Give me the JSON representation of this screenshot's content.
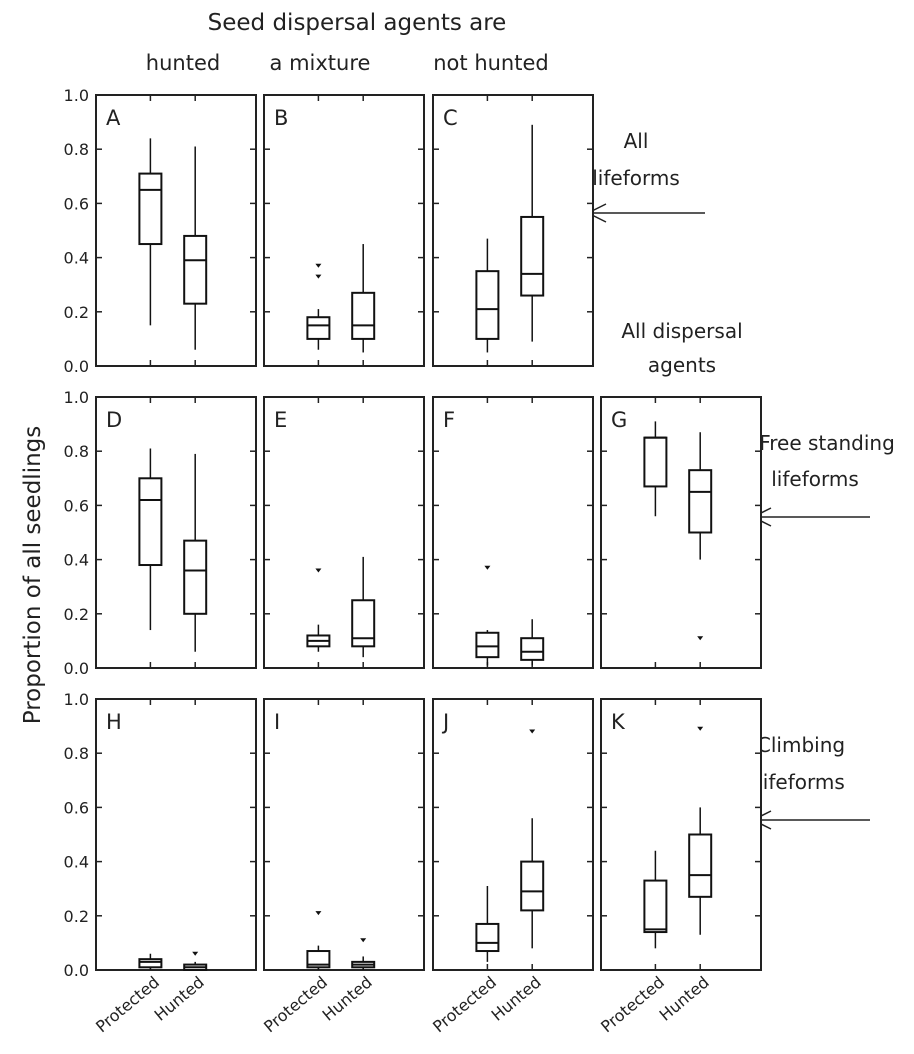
{
  "figure": {
    "title": "Seed dispersal agents are",
    "column_headers": [
      "hunted",
      "a mixture",
      "not hunted"
    ],
    "extra_column_header": [
      "All dispersal",
      "agents"
    ],
    "ylabel": "Proportion of all seedlings",
    "row_labels": [
      [
        "All",
        "lifeforms"
      ],
      [
        "Free standing",
        "lifeforms"
      ],
      [
        "Climbing",
        "lifeforms"
      ]
    ],
    "categories": [
      "Protected",
      "Hunted"
    ],
    "yticks": [
      "1.0",
      "0.8",
      "0.6",
      "0.4",
      "0.2",
      "0.0"
    ]
  },
  "chart_data": [
    {
      "type": "box",
      "panel": "A",
      "categories": [
        "Protected",
        "Hunted"
      ],
      "ylim": [
        0,
        1.0
      ],
      "boxes": [
        {
          "whislo": 0.15,
          "q1": 0.45,
          "med": 0.65,
          "q3": 0.71,
          "whishi": 0.84,
          "fliers": []
        },
        {
          "whislo": 0.06,
          "q1": 0.23,
          "med": 0.39,
          "q3": 0.48,
          "whishi": 0.81,
          "fliers": []
        }
      ]
    },
    {
      "type": "box",
      "panel": "B",
      "categories": [
        "Protected",
        "Hunted"
      ],
      "ylim": [
        0,
        1.0
      ],
      "boxes": [
        {
          "whislo": 0.06,
          "q1": 0.1,
          "med": 0.15,
          "q3": 0.18,
          "whishi": 0.21,
          "fliers": [
            0.33,
            0.37
          ]
        },
        {
          "whislo": 0.05,
          "q1": 0.1,
          "med": 0.15,
          "q3": 0.27,
          "whishi": 0.45,
          "fliers": []
        }
      ]
    },
    {
      "type": "box",
      "panel": "C",
      "categories": [
        "Protected",
        "Hunted"
      ],
      "ylim": [
        0,
        1.0
      ],
      "boxes": [
        {
          "whislo": 0.05,
          "q1": 0.1,
          "med": 0.21,
          "q3": 0.35,
          "whishi": 0.47,
          "fliers": []
        },
        {
          "whislo": 0.09,
          "q1": 0.26,
          "med": 0.34,
          "q3": 0.55,
          "whishi": 0.89,
          "fliers": []
        }
      ]
    },
    {
      "type": "box",
      "panel": "D",
      "categories": [
        "Protected",
        "Hunted"
      ],
      "ylim": [
        0,
        1.0
      ],
      "boxes": [
        {
          "whislo": 0.14,
          "q1": 0.38,
          "med": 0.62,
          "q3": 0.7,
          "whishi": 0.81,
          "fliers": []
        },
        {
          "whislo": 0.06,
          "q1": 0.2,
          "med": 0.36,
          "q3": 0.47,
          "whishi": 0.79,
          "fliers": []
        }
      ]
    },
    {
      "type": "box",
      "panel": "E",
      "categories": [
        "Protected",
        "Hunted"
      ],
      "ylim": [
        0,
        1.0
      ],
      "boxes": [
        {
          "whislo": 0.06,
          "q1": 0.08,
          "med": 0.1,
          "q3": 0.12,
          "whishi": 0.16,
          "fliers": [
            0.36
          ]
        },
        {
          "whislo": 0.04,
          "q1": 0.08,
          "med": 0.11,
          "q3": 0.25,
          "whishi": 0.41,
          "fliers": []
        }
      ]
    },
    {
      "type": "box",
      "panel": "F",
      "categories": [
        "Protected",
        "Hunted"
      ],
      "ylim": [
        0,
        1.0
      ],
      "boxes": [
        {
          "whislo": 0.01,
          "q1": 0.04,
          "med": 0.08,
          "q3": 0.13,
          "whishi": 0.14,
          "fliers": [
            0.37
          ]
        },
        {
          "whislo": 0.01,
          "q1": 0.03,
          "med": 0.06,
          "q3": 0.11,
          "whishi": 0.18,
          "fliers": []
        }
      ]
    },
    {
      "type": "box",
      "panel": "G",
      "categories": [
        "Protected",
        "Hunted"
      ],
      "ylim": [
        0,
        1.0
      ],
      "boxes": [
        {
          "whislo": 0.56,
          "q1": 0.67,
          "med": 0.85,
          "q3": 0.85,
          "whishi": 0.91,
          "fliers": []
        },
        {
          "whislo": 0.4,
          "q1": 0.5,
          "med": 0.65,
          "q3": 0.73,
          "whishi": 0.87,
          "fliers": [
            0.11
          ]
        }
      ]
    },
    {
      "type": "box",
      "panel": "H",
      "categories": [
        "Protected",
        "Hunted"
      ],
      "ylim": [
        0,
        1.0
      ],
      "boxes": [
        {
          "whislo": 0.0,
          "q1": 0.01,
          "med": 0.03,
          "q3": 0.04,
          "whishi": 0.06,
          "fliers": []
        },
        {
          "whislo": 0.0,
          "q1": 0.0,
          "med": 0.01,
          "q3": 0.02,
          "whishi": 0.03,
          "fliers": [
            0.06
          ]
        }
      ]
    },
    {
      "type": "box",
      "panel": "I",
      "categories": [
        "Protected",
        "Hunted"
      ],
      "ylim": [
        0,
        1.0
      ],
      "boxes": [
        {
          "whislo": 0.0,
          "q1": 0.01,
          "med": 0.02,
          "q3": 0.07,
          "whishi": 0.09,
          "fliers": [
            0.21
          ]
        },
        {
          "whislo": 0.0,
          "q1": 0.01,
          "med": 0.02,
          "q3": 0.03,
          "whishi": 0.05,
          "fliers": [
            0.11
          ]
        }
      ]
    },
    {
      "type": "box",
      "panel": "J",
      "categories": [
        "Protected",
        "Hunted"
      ],
      "ylim": [
        0,
        1.0
      ],
      "boxes": [
        {
          "whislo": 0.03,
          "q1": 0.07,
          "med": 0.1,
          "q3": 0.17,
          "whishi": 0.31,
          "fliers": []
        },
        {
          "whislo": 0.08,
          "q1": 0.22,
          "med": 0.29,
          "q3": 0.4,
          "whishi": 0.56,
          "fliers": [
            0.88
          ]
        }
      ]
    },
    {
      "type": "box",
      "panel": "K",
      "categories": [
        "Protected",
        "Hunted"
      ],
      "ylim": [
        0,
        1.0
      ],
      "boxes": [
        {
          "whislo": 0.08,
          "q1": 0.14,
          "med": 0.15,
          "q3": 0.33,
          "whishi": 0.44,
          "fliers": []
        },
        {
          "whislo": 0.13,
          "q1": 0.27,
          "med": 0.35,
          "q3": 0.5,
          "whishi": 0.6,
          "fliers": [
            0.89
          ]
        }
      ]
    }
  ]
}
